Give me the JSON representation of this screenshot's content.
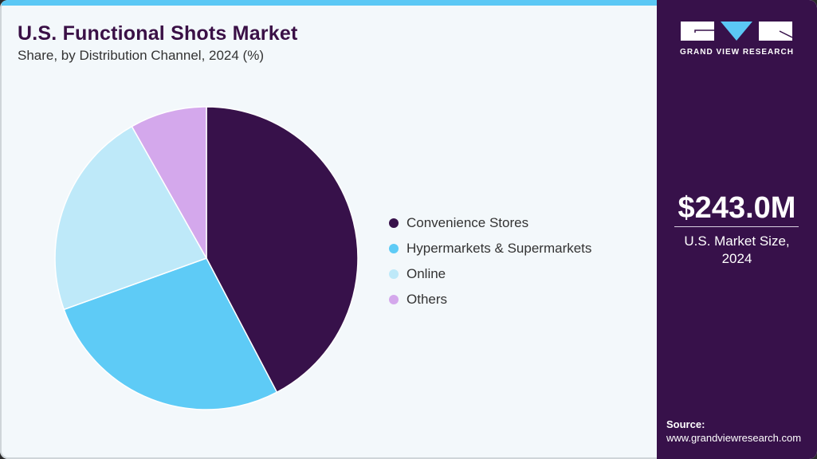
{
  "header": {
    "title": "U.S. Functional Shots Market",
    "subtitle": "Share, by Distribution Channel, 2024 (%)"
  },
  "chart_data": {
    "type": "pie",
    "title": "U.S. Functional Shots Market",
    "subtitle": "Share, by Distribution Channel, 2024 (%)",
    "categories": [
      "Convenience Stores",
      "Hypermarkets & Supermarkets",
      "Online",
      "Others"
    ],
    "values": [
      42.3,
      27.2,
      22.3,
      8.2
    ],
    "colors": [
      "#37114a",
      "#5ecbf6",
      "#bee9f9",
      "#d4a8ec"
    ],
    "start_angle": "12 o'clock, clockwise",
    "legend_position": "right"
  },
  "legend": {
    "items": [
      {
        "label": "Convenience Stores",
        "color": "#37114a"
      },
      {
        "label": "Hypermarkets & Supermarkets",
        "color": "#5ecbf6"
      },
      {
        "label": "Online",
        "color": "#bee9f9"
      },
      {
        "label": "Others",
        "color": "#d4a8ec"
      }
    ]
  },
  "sidebar": {
    "logo_text": "GRAND VIEW RESEARCH",
    "market_value": "$243.0M",
    "market_label_line1": "U.S. Market Size,",
    "market_label_line2": "2024",
    "source_label": "Source:",
    "source_url": "www.grandviewresearch.com"
  },
  "colors": {
    "brand_purple": "#37114a",
    "accent_blue": "#5bc8f5",
    "background": "#f3f8fb"
  }
}
